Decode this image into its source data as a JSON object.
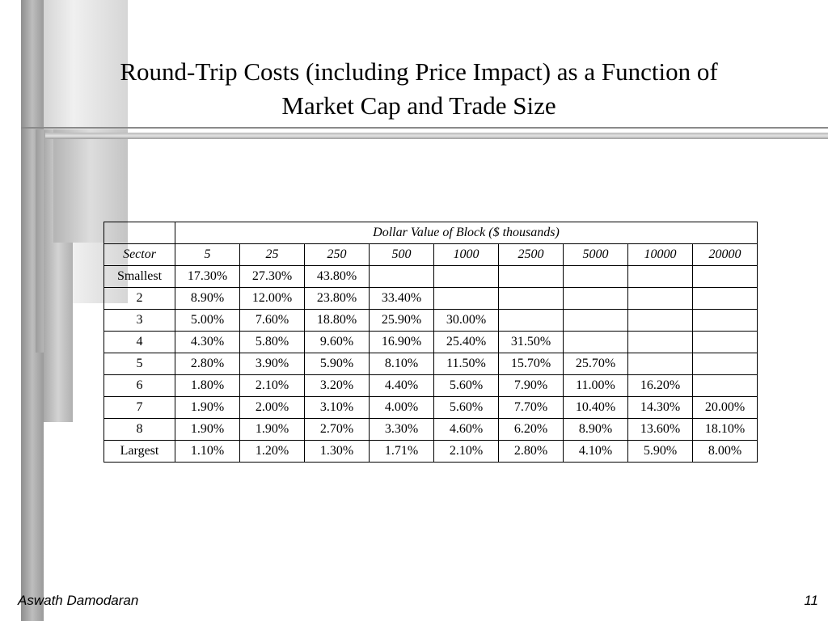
{
  "slide": {
    "title_line1": "Round-Trip Costs (including Price Impact) as a Function of",
    "title_line2": "Market Cap and Trade Size",
    "footer_author": "Aswath Damodaran",
    "footer_page": "11"
  },
  "table": {
    "group_header": "Dollar Value of Block ($ thousands)",
    "sector_header": "Sector",
    "columns": [
      "5",
      "25",
      "250",
      "500",
      "1000",
      "2500",
      "5000",
      "10000",
      "20000"
    ],
    "rows": [
      {
        "sector": "Smallest",
        "values": [
          "17.30%",
          "27.30%",
          "43.80%",
          "",
          "",
          "",
          "",
          "",
          ""
        ]
      },
      {
        "sector": "2",
        "values": [
          "8.90%",
          "12.00%",
          "23.80%",
          "33.40%",
          "",
          "",
          "",
          "",
          ""
        ]
      },
      {
        "sector": "3",
        "values": [
          "5.00%",
          "7.60%",
          "18.80%",
          "25.90%",
          "30.00%",
          "",
          "",
          "",
          ""
        ]
      },
      {
        "sector": "4",
        "values": [
          "4.30%",
          "5.80%",
          "9.60%",
          "16.90%",
          "25.40%",
          "31.50%",
          "",
          "",
          ""
        ]
      },
      {
        "sector": "5",
        "values": [
          "2.80%",
          "3.90%",
          "5.90%",
          "8.10%",
          "11.50%",
          "15.70%",
          "25.70%",
          "",
          ""
        ]
      },
      {
        "sector": "6",
        "values": [
          "1.80%",
          "2.10%",
          "3.20%",
          "4.40%",
          "5.60%",
          "7.90%",
          "11.00%",
          "16.20%",
          ""
        ]
      },
      {
        "sector": "7",
        "values": [
          "1.90%",
          "2.00%",
          "3.10%",
          "4.00%",
          "5.60%",
          "7.70%",
          "10.40%",
          "14.30%",
          "20.00%"
        ]
      },
      {
        "sector": "8",
        "values": [
          "1.90%",
          "1.90%",
          "2.70%",
          "3.30%",
          "4.60%",
          "6.20%",
          "8.90%",
          "13.60%",
          "18.10%"
        ]
      },
      {
        "sector": "Largest",
        "values": [
          "1.10%",
          "1.20%",
          "1.30%",
          "1.71%",
          "2.10%",
          "2.80%",
          "4.10%",
          "5.90%",
          "8.00%"
        ]
      }
    ]
  }
}
